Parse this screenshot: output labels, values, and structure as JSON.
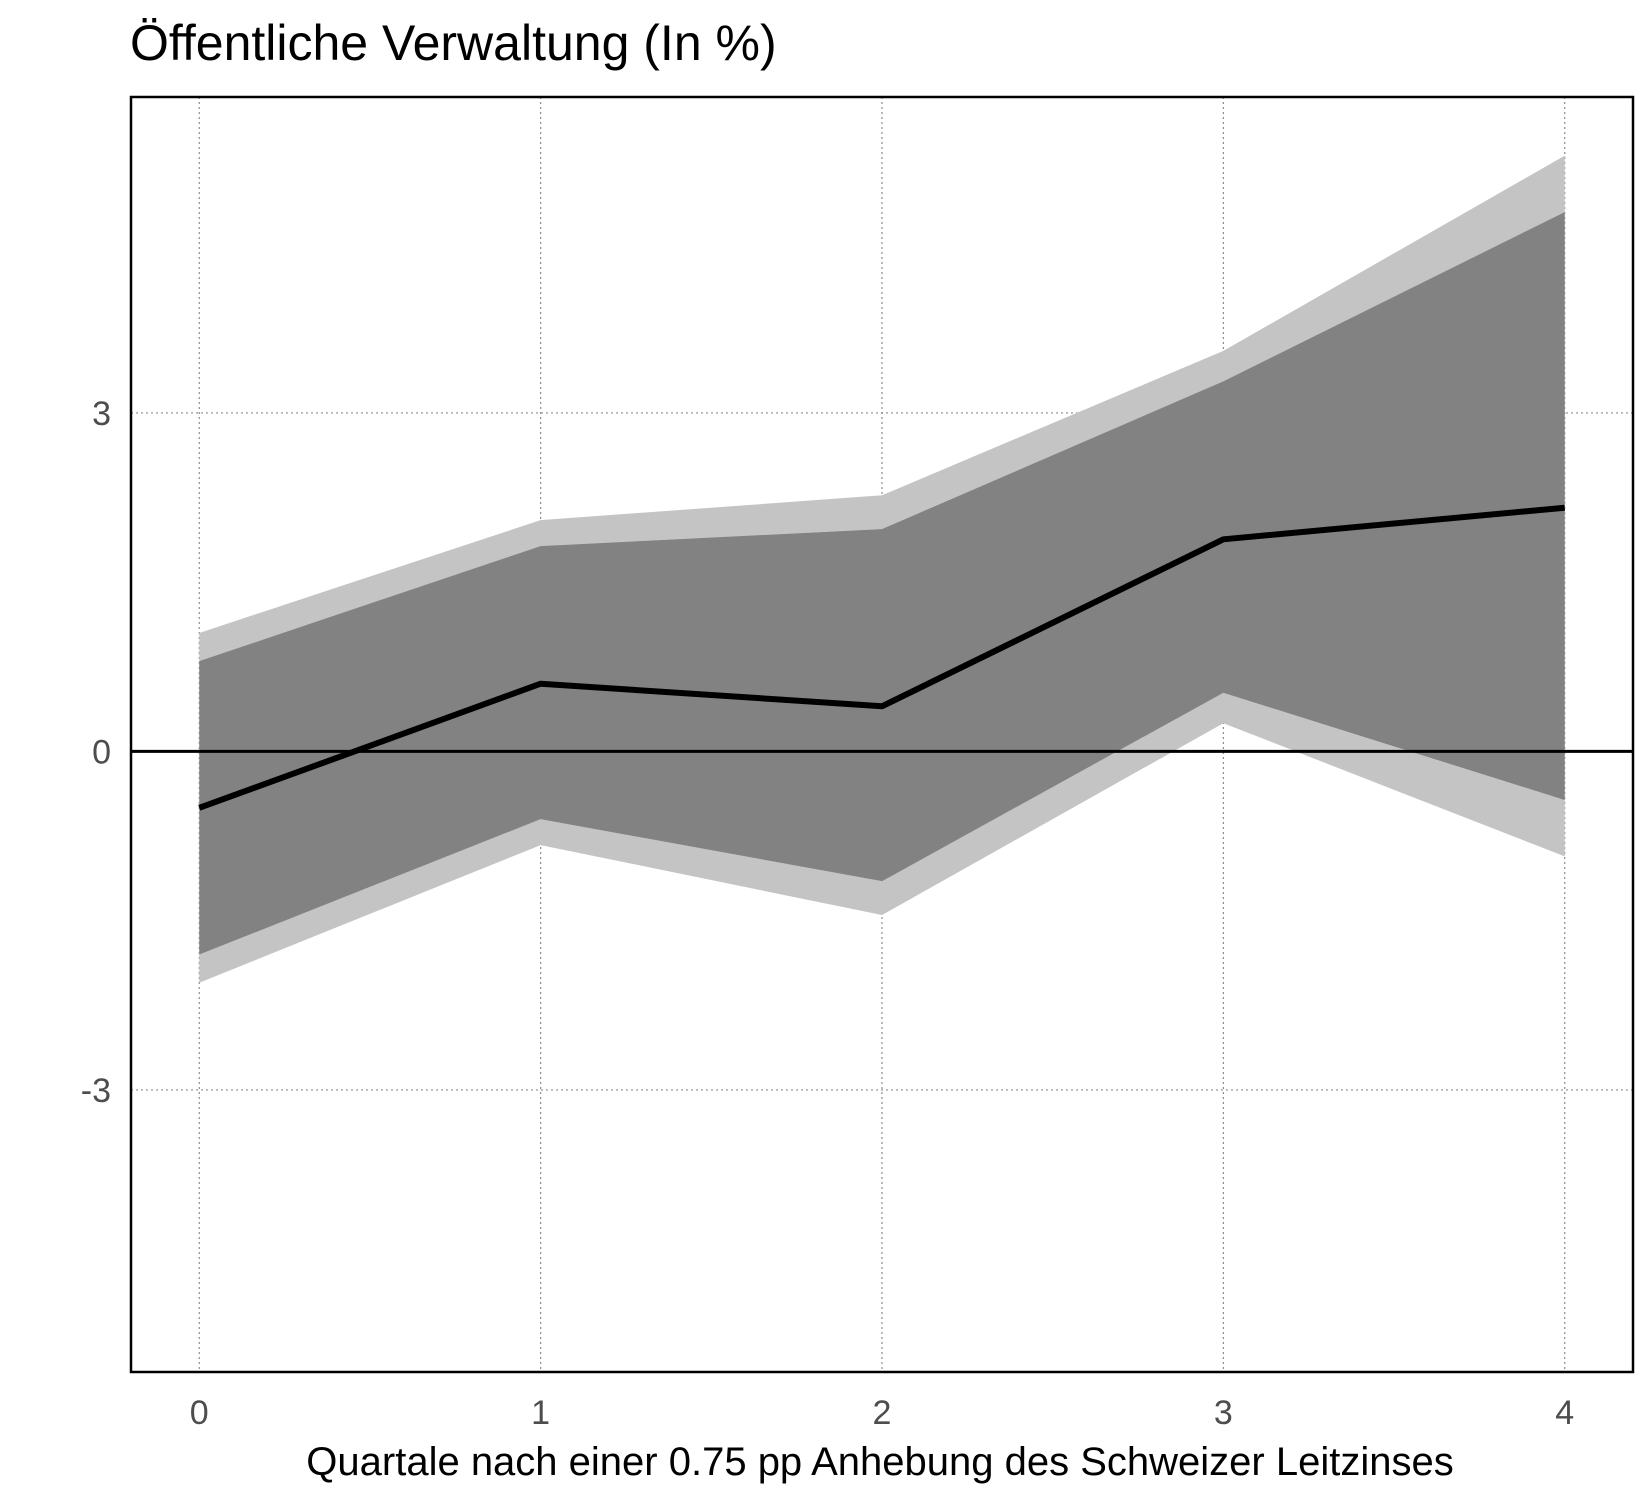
{
  "chart_data": {
    "type": "area",
    "title": "Öffentliche Verwaltung (In %)",
    "xlabel": "Quartale nach einer 0.75 pp Anhebung des Schweizer Leitzinses",
    "ylabel": "",
    "x": [
      0,
      1,
      2,
      3,
      4
    ],
    "xlim": [
      -0.2,
      4.2
    ],
    "ylim": [
      -5.5,
      5.8
    ],
    "x_ticks": [
      0,
      1,
      2,
      3,
      4
    ],
    "y_ticks": [
      3,
      0,
      -3
    ],
    "x_tick_labels": [
      "0",
      "1",
      "2",
      "3",
      "4"
    ],
    "y_tick_labels": [
      "3",
      "0",
      "-3"
    ],
    "grid": true,
    "legend": "none",
    "series": [
      {
        "type": "band",
        "color": "#c4c4c4",
        "lower": [
          -2.05,
          -0.83,
          -1.45,
          0.25,
          -0.93
        ],
        "upper": [
          1.05,
          2.05,
          2.27,
          3.55,
          5.28
        ]
      },
      {
        "type": "band",
        "color": "#828282",
        "lower": [
          -1.8,
          -0.6,
          -1.15,
          0.52,
          -0.43
        ],
        "upper": [
          0.8,
          1.82,
          1.97,
          3.28,
          4.78
        ]
      },
      {
        "type": "line",
        "color": "#000000",
        "values": [
          -0.5,
          0.6,
          0.4,
          1.88,
          2.16
        ]
      }
    ],
    "reference_line": {
      "y": 0,
      "color": "#000000"
    }
  }
}
